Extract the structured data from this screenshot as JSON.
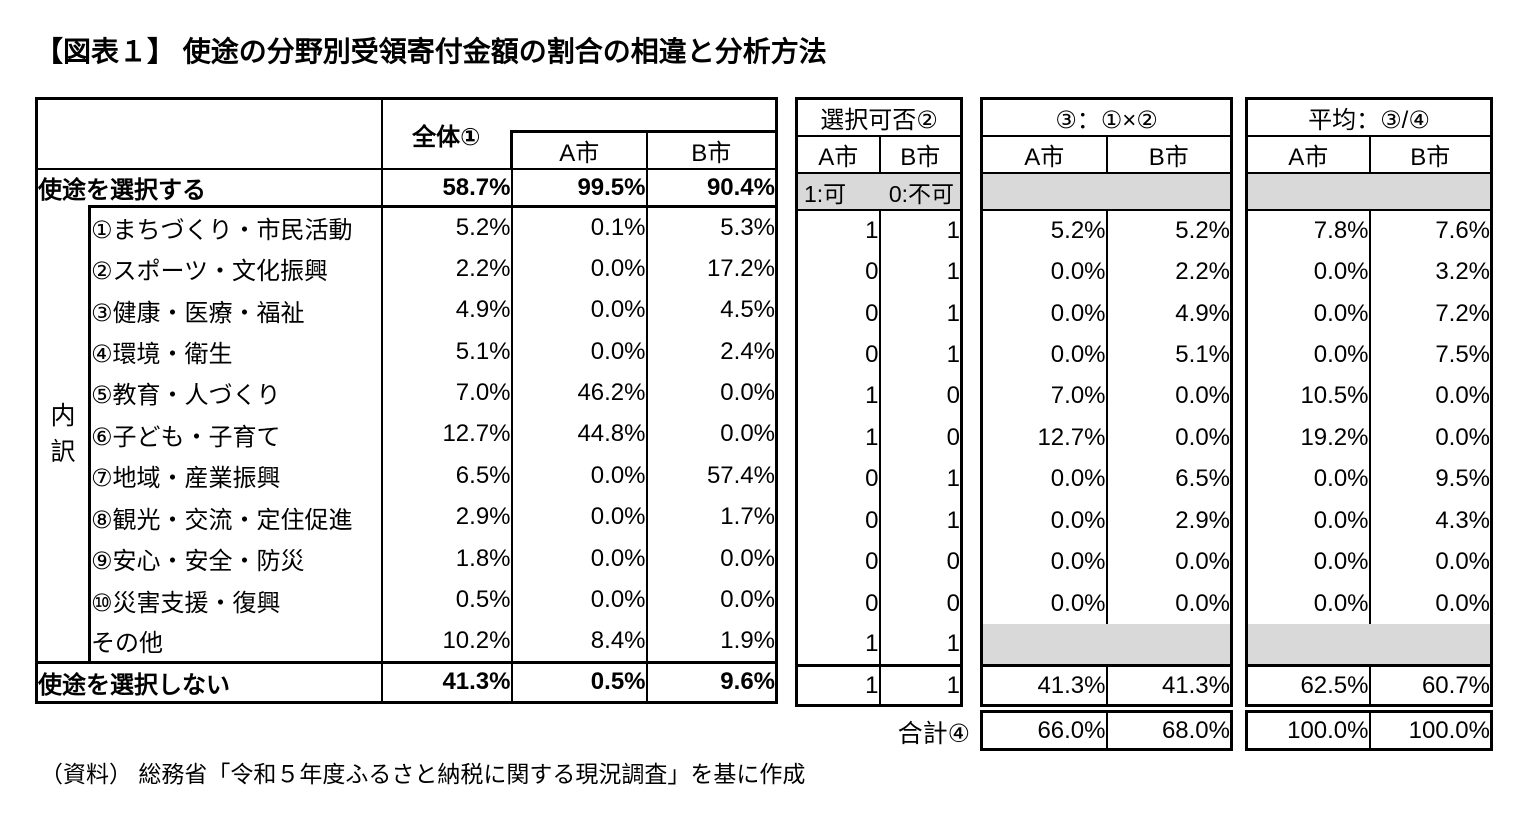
{
  "title": "【図表１】 使途の分野別受領寄付金額の割合の相違と分析方法",
  "source_note": "（資料） 総務省「令和５年度ふるさと納税に関する現況調査」を基に作成",
  "total_label": "合計④",
  "colors": {
    "gray_fill": "#d9d9d9",
    "border": "#000000"
  },
  "main_table": {
    "header": {
      "zentai": "全体①",
      "city_a": "A市",
      "city_b": "B市"
    },
    "group_label_chars": [
      "内",
      "訳"
    ],
    "select_row": {
      "label": "使途を選択する",
      "zentai": "58.7%",
      "a": "99.5%",
      "b": "90.4%"
    },
    "items": [
      {
        "label": "①まちづくり・市民活動",
        "zentai": "5.2%",
        "a": "0.1%",
        "b": "5.3%"
      },
      {
        "label": "②スポーツ・文化振興",
        "zentai": "2.2%",
        "a": "0.0%",
        "b": "17.2%"
      },
      {
        "label": "③健康・医療・福祉",
        "zentai": "4.9%",
        "a": "0.0%",
        "b": "4.5%"
      },
      {
        "label": "④環境・衛生",
        "zentai": "5.1%",
        "a": "0.0%",
        "b": "2.4%"
      },
      {
        "label": "⑤教育・人づくり",
        "zentai": "7.0%",
        "a": "46.2%",
        "b": "0.0%"
      },
      {
        "label": "⑥子ども・子育て",
        "zentai": "12.7%",
        "a": "44.8%",
        "b": "0.0%"
      },
      {
        "label": "⑦地域・産業振興",
        "zentai": "6.5%",
        "a": "0.0%",
        "b": "57.4%"
      },
      {
        "label": "⑧観光・交流・定住促進",
        "zentai": "2.9%",
        "a": "0.0%",
        "b": "1.7%"
      },
      {
        "label": "⑨安心・安全・防災",
        "zentai": "1.8%",
        "a": "0.0%",
        "b": "0.0%"
      },
      {
        "label": "⑩災害支援・復興",
        "zentai": "0.5%",
        "a": "0.0%",
        "b": "0.0%"
      },
      {
        "label": "その他",
        "zentai": "10.2%",
        "a": "8.4%",
        "b": "1.9%"
      }
    ],
    "noselect_row": {
      "label": "使途を選択しない",
      "zentai": "41.3%",
      "a": "0.5%",
      "b": "9.6%"
    }
  },
  "sel_table": {
    "title": "選択可否②",
    "city_a": "A市",
    "city_b": "B市",
    "legend_left": "1:可",
    "legend_right": "0:不可",
    "rows": [
      [
        "1",
        "1"
      ],
      [
        "0",
        "1"
      ],
      [
        "0",
        "1"
      ],
      [
        "0",
        "1"
      ],
      [
        "1",
        "0"
      ],
      [
        "1",
        "0"
      ],
      [
        "0",
        "1"
      ],
      [
        "0",
        "1"
      ],
      [
        "0",
        "0"
      ],
      [
        "0",
        "0"
      ],
      [
        "1",
        "1"
      ]
    ],
    "noselect": [
      "1",
      "1"
    ]
  },
  "mul_table": {
    "title": "③：①×②",
    "city_a": "A市",
    "city_b": "B市",
    "rows": [
      [
        "5.2%",
        "5.2%"
      ],
      [
        "0.0%",
        "2.2%"
      ],
      [
        "0.0%",
        "4.9%"
      ],
      [
        "0.0%",
        "5.1%"
      ],
      [
        "7.0%",
        "0.0%"
      ],
      [
        "12.7%",
        "0.0%"
      ],
      [
        "0.0%",
        "6.5%"
      ],
      [
        "0.0%",
        "2.9%"
      ],
      [
        "0.0%",
        "0.0%"
      ],
      [
        "0.0%",
        "0.0%"
      ]
    ],
    "noselect": [
      "41.3%",
      "41.3%"
    ],
    "total": [
      "66.0%",
      "68.0%"
    ]
  },
  "avg_table": {
    "title": "平均：③/④",
    "city_a": "A市",
    "city_b": "B市",
    "rows": [
      [
        "7.8%",
        "7.6%"
      ],
      [
        "0.0%",
        "3.2%"
      ],
      [
        "0.0%",
        "7.2%"
      ],
      [
        "0.0%",
        "7.5%"
      ],
      [
        "10.5%",
        "0.0%"
      ],
      [
        "19.2%",
        "0.0%"
      ],
      [
        "0.0%",
        "9.5%"
      ],
      [
        "0.0%",
        "4.3%"
      ],
      [
        "0.0%",
        "0.0%"
      ],
      [
        "0.0%",
        "0.0%"
      ]
    ],
    "noselect": [
      "62.5%",
      "60.7%"
    ],
    "total": [
      "100.0%",
      "100.0%"
    ]
  }
}
